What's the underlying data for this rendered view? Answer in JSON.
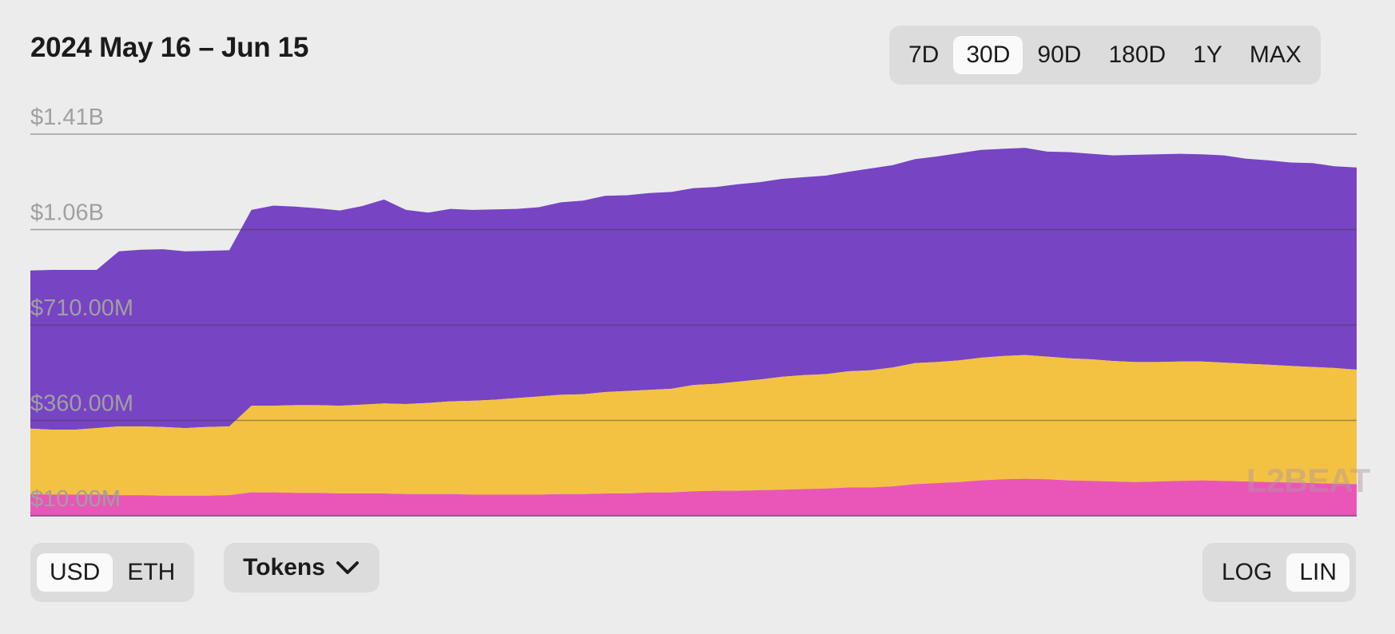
{
  "header": {
    "title": "2024 May 16 – Jun 15",
    "ranges": [
      "7D",
      "30D",
      "90D",
      "180D",
      "1Y",
      "MAX"
    ],
    "active_range": "30D"
  },
  "controls": {
    "units": [
      "USD",
      "ETH"
    ],
    "active_unit": "USD",
    "dropdown_label": "Tokens",
    "scales": [
      "LOG",
      "LIN"
    ],
    "active_scale": "LIN"
  },
  "watermark": "L2BEAT",
  "colors": {
    "background": "#ececec",
    "series_pink": "#e956b8",
    "series_yellow": "#f3c243",
    "series_purple": "#7744c4",
    "gridline": "#9a9a9a"
  },
  "chart_data": {
    "type": "area",
    "stacked": true,
    "date_range": [
      "2024-05-16",
      "2024-06-15"
    ],
    "y_ticks": [
      "$10.00M",
      "$360.00M",
      "$710.00M",
      "$1.06B",
      "$1.41B"
    ],
    "y_tick_values": [
      10,
      360,
      710,
      1060,
      1410
    ],
    "y_unit": "$M",
    "ylim": [
      10,
      1410
    ],
    "grid": true,
    "x": [
      "2024-05-16",
      "2024-05-16",
      "2024-05-17",
      "2024-05-17",
      "2024-05-18",
      "2024-05-18",
      "2024-05-19",
      "2024-05-19",
      "2024-05-20",
      "2024-05-20",
      "2024-05-21",
      "2024-05-21",
      "2024-05-22",
      "2024-05-22",
      "2024-05-23",
      "2024-05-23",
      "2024-05-24",
      "2024-05-24",
      "2024-05-25",
      "2024-05-25",
      "2024-05-26",
      "2024-05-26",
      "2024-05-27",
      "2024-05-27",
      "2024-05-28",
      "2024-05-28",
      "2024-05-29",
      "2024-05-29",
      "2024-05-30",
      "2024-05-30",
      "2024-05-31",
      "2024-05-31",
      "2024-06-01",
      "2024-06-01",
      "2024-06-02",
      "2024-06-02",
      "2024-06-03",
      "2024-06-03",
      "2024-06-04",
      "2024-06-04",
      "2024-06-05",
      "2024-06-05",
      "2024-06-06",
      "2024-06-06",
      "2024-06-07",
      "2024-06-07",
      "2024-06-08",
      "2024-06-08",
      "2024-06-09",
      "2024-06-09",
      "2024-06-10",
      "2024-06-10",
      "2024-06-11",
      "2024-06-11",
      "2024-06-12",
      "2024-06-12",
      "2024-06-13",
      "2024-06-13",
      "2024-06-14",
      "2024-06-14",
      "2024-06-15"
    ],
    "series": [
      {
        "values": [
          80,
          78,
          78,
          78,
          76,
          76,
          74,
          74,
          74,
          76,
          86,
          86,
          84,
          84,
          82,
          82,
          82,
          80,
          80,
          80,
          78,
          78,
          78,
          78,
          80,
          80,
          82,
          82,
          86,
          86,
          90,
          92,
          92,
          94,
          96,
          98,
          100,
          104,
          104,
          108,
          116,
          120,
          124,
          130,
          134,
          136,
          134,
          130,
          128,
          126,
          124,
          126,
          128,
          130,
          128,
          126,
          124,
          122,
          120,
          118,
          116
        ]
      },
      {
        "values": [
          240,
          238,
          238,
          244,
          252,
          252,
          252,
          248,
          252,
          252,
          318,
          318,
          322,
          322,
          322,
          326,
          330,
          330,
          334,
          340,
          344,
          348,
          354,
          360,
          364,
          366,
          372,
          376,
          376,
          380,
          390,
          392,
          400,
          406,
          414,
          418,
          420,
          426,
          430,
          436,
          444,
          444,
          446,
          450,
          452,
          454,
          450,
          448,
          446,
          442,
          440,
          438,
          438,
          436,
          434,
          432,
          430,
          428,
          426,
          424,
          420
        ]
      },
      {
        "values": [
          580,
          586,
          586,
          580,
          642,
          648,
          652,
          648,
          646,
          646,
          718,
          734,
          728,
          722,
          716,
          728,
          748,
          712,
          698,
          706,
          700,
          698,
          694,
          694,
          706,
          710,
          720,
          718,
          722,
          722,
          722,
          722,
          724,
          724,
          726,
          726,
          728,
          732,
          740,
          742,
          748,
          754,
          760,
          762,
          760,
          760,
          752,
          756,
          754,
          754,
          760,
          762,
          762,
          760,
          760,
          752,
          750,
          746,
          748,
          740,
          742
        ]
      }
    ]
  }
}
